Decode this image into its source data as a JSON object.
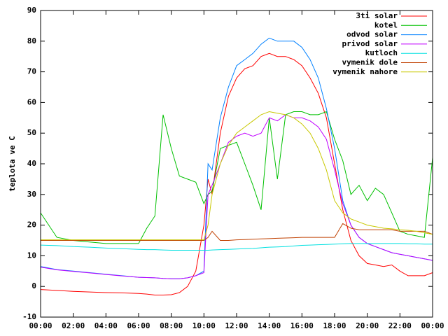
{
  "chart_data": {
    "type": "line",
    "y_label": "teplota ve C",
    "x": [
      0,
      1,
      2,
      3,
      4,
      5,
      6,
      6.5,
      7,
      7.5,
      8,
      8.5,
      9,
      9.5,
      10,
      10.25,
      10.5,
      11,
      11.5,
      12,
      12.5,
      13,
      13.5,
      14,
      14.5,
      15,
      15.5,
      16,
      16.5,
      17,
      17.5,
      18,
      18.5,
      19,
      19.5,
      20,
      20.5,
      21,
      21.5,
      22,
      22.5,
      23,
      23.5,
      24
    ],
    "xlim": [
      0,
      24
    ],
    "xticks": [
      {
        "value": 0,
        "label": "00:00"
      },
      {
        "value": 2,
        "label": "02:00"
      },
      {
        "value": 4,
        "label": "04:00"
      },
      {
        "value": 6,
        "label": "06:00"
      },
      {
        "value": 8,
        "label": "08:00"
      },
      {
        "value": 10,
        "label": "10:00"
      },
      {
        "value": 12,
        "label": "12:00"
      },
      {
        "value": 14,
        "label": "14:00"
      },
      {
        "value": 16,
        "label": "16:00"
      },
      {
        "value": 18,
        "label": "18:00"
      },
      {
        "value": 20,
        "label": "20:00"
      },
      {
        "value": 22,
        "label": "22:00"
      },
      {
        "value": 24,
        "label": "00:00"
      }
    ],
    "ylim": [
      -10,
      90
    ],
    "yticks": [
      -10,
      0,
      10,
      20,
      30,
      40,
      50,
      60,
      70,
      80,
      90
    ],
    "legend": "top-right",
    "series": [
      {
        "name": "3ti solar",
        "color": "#ff0000",
        "values": [
          -1,
          -1.3,
          -1.6,
          -1.8,
          -2,
          -2.1,
          -2.3,
          -2.5,
          -2.8,
          -2.8,
          -2.7,
          -2,
          0,
          5,
          20,
          35,
          30,
          50,
          62,
          68,
          71,
          72,
          75,
          76,
          75,
          75,
          74,
          72,
          68,
          63,
          55,
          40,
          25,
          15,
          10,
          7.5,
          7,
          6.5,
          7,
          5,
          3.5,
          3.5,
          3.5,
          4.5
        ]
      },
      {
        "name": "kotel",
        "color": "#00c000",
        "values": [
          24,
          16,
          15,
          14.5,
          14,
          14,
          14,
          19,
          23,
          56,
          45,
          36,
          35,
          34,
          27,
          30,
          31,
          45,
          46,
          47,
          40,
          33,
          25,
          55,
          35,
          56,
          57,
          57,
          56,
          56,
          57,
          48,
          41,
          30,
          33,
          28,
          32,
          30,
          24,
          18,
          17,
          16.5,
          16,
          42
        ]
      },
      {
        "name": "odvod solar",
        "color": "#0080ff",
        "values": [
          6.5,
          5.5,
          5,
          4.5,
          4,
          3.5,
          3,
          2.9,
          2.8,
          2.6,
          2.5,
          2.5,
          2.8,
          3.5,
          5,
          40,
          38,
          55,
          65,
          72,
          74,
          76,
          79,
          81,
          80,
          80,
          80,
          78,
          74,
          68,
          58,
          45,
          28,
          20,
          16,
          14,
          13,
          12,
          11,
          10.5,
          10,
          9.5,
          9,
          8.5
        ]
      },
      {
        "name": "privod solar",
        "color": "#c000ff",
        "values": [
          6.3,
          5.4,
          4.9,
          4.4,
          3.9,
          3.4,
          3,
          2.9,
          2.8,
          2.6,
          2.5,
          2.5,
          2.8,
          3.5,
          4.5,
          30,
          33,
          40,
          47,
          49,
          50,
          49,
          50,
          55,
          54,
          56,
          55,
          55,
          54,
          52,
          48,
          38,
          27,
          20,
          16,
          14,
          13,
          12,
          11,
          10.5,
          10,
          9.5,
          9,
          8.5
        ]
      },
      {
        "name": "kutloch",
        "color": "#00e0e0",
        "values": [
          13.5,
          13.3,
          13,
          12.8,
          12.5,
          12.3,
          12.1,
          12,
          12,
          11.9,
          11.8,
          11.8,
          11.8,
          11.8,
          11.8,
          11.8,
          11.9,
          12,
          12.1,
          12.2,
          12.3,
          12.4,
          12.6,
          12.8,
          12.9,
          13,
          13.2,
          13.4,
          13.5,
          13.6,
          13.7,
          13.8,
          13.9,
          14,
          14,
          14,
          14,
          14,
          14,
          14,
          13.9,
          13.9,
          13.8,
          13.8
        ]
      },
      {
        "name": "vymenik dole",
        "color": "#c04000",
        "values": [
          15,
          15,
          15,
          15,
          15,
          15,
          15,
          15,
          15,
          15,
          15,
          15,
          15,
          15,
          15,
          16,
          18,
          15,
          15,
          15.2,
          15.3,
          15.4,
          15.5,
          15.6,
          15.7,
          15.8,
          15.9,
          16,
          16,
          16,
          16,
          16,
          20.5,
          19,
          18.5,
          18.5,
          18.5,
          18.5,
          18.5,
          18,
          18,
          18,
          18,
          17
        ]
      },
      {
        "name": "vymenik nahore",
        "color": "#c8c800",
        "values": [
          15.2,
          15.2,
          15.2,
          15.2,
          15.2,
          15.2,
          15.2,
          15.2,
          15.2,
          15.2,
          15.2,
          15.2,
          15.2,
          15.2,
          15.2,
          20,
          30,
          40,
          46,
          50,
          52,
          54,
          56,
          57,
          56.5,
          56,
          55,
          53,
          50,
          45,
          38,
          28,
          24,
          22,
          21,
          20,
          19.5,
          19,
          18.8,
          18.5,
          18.3,
          18,
          17.5,
          17
        ]
      }
    ]
  }
}
